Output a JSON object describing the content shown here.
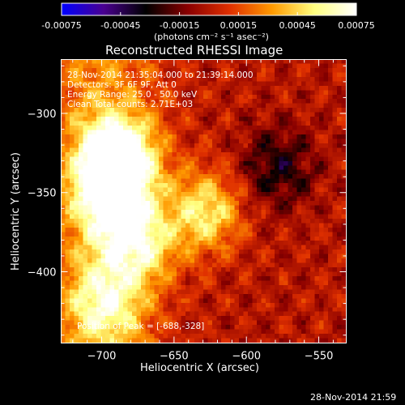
{
  "colorbar": {
    "tick_labels": [
      "-0.00075",
      "-0.00045",
      "-0.00015",
      "0.00015",
      "0.00045",
      "0.00075"
    ],
    "units": "(photons cm⁻² s⁻¹ asec⁻²)",
    "range": [
      -0.00075,
      0.00075
    ],
    "colors": [
      "#0000ff",
      "#4a0090",
      "#000000",
      "#8a0000",
      "#e03000",
      "#ff9a00",
      "#ffff80",
      "#ffffff"
    ]
  },
  "chart_data": {
    "type": "heatmap",
    "title": "Reconstructed RHESSI Image",
    "xlabel": "Heliocentric X (arcsec)",
    "ylabel": "Heliocentric Y (arcsec)",
    "xlim": [
      -728,
      -531
    ],
    "ylim": [
      -445,
      -266
    ],
    "x_ticks": [
      -700,
      -650,
      -600,
      -550
    ],
    "y_ticks": [
      -400,
      -350,
      -300
    ],
    "x_tick_labels": [
      "−700",
      "−650",
      "−600",
      "−550"
    ],
    "y_tick_labels": [
      "−400",
      "−350",
      "−300"
    ],
    "peak": [
      -688,
      -328
    ],
    "sources": [
      {
        "x": -688,
        "y": -328,
        "intensity": 0.00075
      },
      {
        "x": -694,
        "y": -350,
        "intensity": 0.00055
      },
      {
        "x": -675,
        "y": -382,
        "intensity": 0.0005
      },
      {
        "x": -628,
        "y": -362,
        "intensity": 0.00052
      },
      {
        "x": -698,
        "y": -420,
        "intensity": 0.0004
      },
      {
        "x": -578,
        "y": -335,
        "intensity": -0.0003
      }
    ]
  },
  "annotations": {
    "time_range": "28-Nov-2014 21:35:04.000 to 21:39:14.000",
    "detectors": "Detectors: 3F 6F 9F, Att 0",
    "energy_range": "Energy Range: 25.0 - 50.0 keV",
    "clean": "Clean     Total counts: 2.71E+03",
    "peak_position": "Position of Peak = [-688,-328]"
  },
  "footer": {
    "timestamp": "28-Nov-2014 21:59"
  }
}
